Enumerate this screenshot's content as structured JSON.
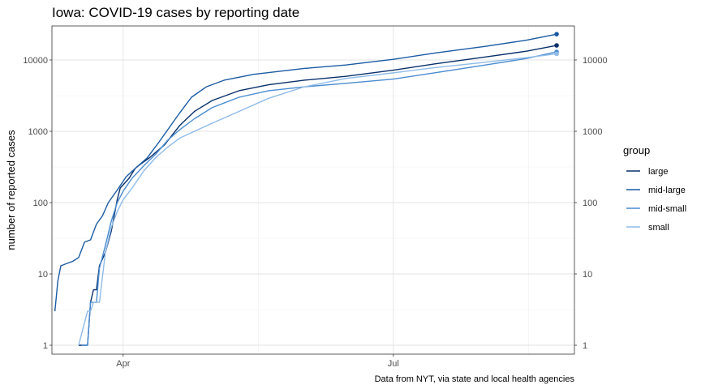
{
  "chart_data": {
    "type": "line",
    "title": "Iowa: COVID-19 cases by reporting date",
    "xlabel": "",
    "ylabel": "number of reported cases",
    "caption": "Data from NYT, via state and local health agencies",
    "y_scale": "log10",
    "ylim": [
      0.75,
      30000
    ],
    "xlim": [
      "2020-03-08",
      "2020-08-31"
    ],
    "y_ticks": [
      1,
      10,
      100,
      1000,
      10000
    ],
    "y_tick_labels": [
      "1",
      "10",
      "100",
      "1000",
      "10000"
    ],
    "x_ticks": [
      "2020-04-01",
      "2020-07-01"
    ],
    "x_tick_labels": [
      "Apr",
      "Jul"
    ],
    "secondary_y_axis": true,
    "grid": true,
    "legend": {
      "title": "group",
      "position": "right"
    },
    "end_points": true,
    "series": [
      {
        "name": "large",
        "color": "#08306b",
        "points": [
          [
            "2020-03-17",
            1
          ],
          [
            "2020-03-20",
            1
          ],
          [
            "2020-03-21",
            4
          ],
          [
            "2020-03-22",
            6
          ],
          [
            "2020-03-23",
            6
          ],
          [
            "2020-03-24",
            13
          ],
          [
            "2020-03-26",
            20
          ],
          [
            "2020-03-28",
            40
          ],
          [
            "2020-03-30",
            110
          ],
          [
            "2020-03-31",
            160
          ],
          [
            "2020-04-03",
            220
          ],
          [
            "2020-04-05",
            300
          ],
          [
            "2020-04-07",
            350
          ],
          [
            "2020-04-10",
            430
          ],
          [
            "2020-04-15",
            650
          ],
          [
            "2020-04-20",
            1200
          ],
          [
            "2020-04-25",
            1900
          ],
          [
            "2020-05-01",
            2700
          ],
          [
            "2020-05-10",
            3700
          ],
          [
            "2020-05-20",
            4500
          ],
          [
            "2020-06-01",
            5200
          ],
          [
            "2020-06-15",
            5900
          ],
          [
            "2020-07-01",
            7200
          ],
          [
            "2020-07-15",
            8800
          ],
          [
            "2020-08-01",
            11000
          ],
          [
            "2020-08-15",
            13300
          ],
          [
            "2020-08-25",
            16000
          ]
        ]
      },
      {
        "name": "mid-large",
        "color": "#1a5ba3",
        "points": [
          [
            "2020-03-09",
            3
          ],
          [
            "2020-03-10",
            8
          ],
          [
            "2020-03-11",
            13
          ],
          [
            "2020-03-13",
            14
          ],
          [
            "2020-03-15",
            15
          ],
          [
            "2020-03-17",
            17
          ],
          [
            "2020-03-19",
            28
          ],
          [
            "2020-03-21",
            30
          ],
          [
            "2020-03-23",
            50
          ],
          [
            "2020-03-25",
            65
          ],
          [
            "2020-03-27",
            100
          ],
          [
            "2020-03-30",
            150
          ],
          [
            "2020-04-02",
            230
          ],
          [
            "2020-04-05",
            300
          ],
          [
            "2020-04-09",
            420
          ],
          [
            "2020-04-13",
            700
          ],
          [
            "2020-04-16",
            1050
          ],
          [
            "2020-04-20",
            1800
          ],
          [
            "2020-04-24",
            3000
          ],
          [
            "2020-04-29",
            4200
          ],
          [
            "2020-05-05",
            5200
          ],
          [
            "2020-05-15",
            6300
          ],
          [
            "2020-06-01",
            7600
          ],
          [
            "2020-06-15",
            8500
          ],
          [
            "2020-07-01",
            10200
          ],
          [
            "2020-07-15",
            12500
          ],
          [
            "2020-08-01",
            15500
          ],
          [
            "2020-08-15",
            19000
          ],
          [
            "2020-08-25",
            23000
          ]
        ]
      },
      {
        "name": "mid-small",
        "color": "#4a8cd0",
        "points": [
          [
            "2020-03-18",
            1
          ],
          [
            "2020-03-20",
            1
          ],
          [
            "2020-03-21",
            4
          ],
          [
            "2020-03-23",
            4
          ],
          [
            "2020-03-24",
            12
          ],
          [
            "2020-03-26",
            25
          ],
          [
            "2020-03-28",
            55
          ],
          [
            "2020-03-30",
            100
          ],
          [
            "2020-04-01",
            145
          ],
          [
            "2020-04-04",
            220
          ],
          [
            "2020-04-08",
            330
          ],
          [
            "2020-04-12",
            480
          ],
          [
            "2020-04-16",
            750
          ],
          [
            "2020-04-20",
            1050
          ],
          [
            "2020-04-25",
            1500
          ],
          [
            "2020-05-01",
            2150
          ],
          [
            "2020-05-10",
            3000
          ],
          [
            "2020-05-20",
            3700
          ],
          [
            "2020-06-01",
            4200
          ],
          [
            "2020-06-15",
            4700
          ],
          [
            "2020-07-01",
            5400
          ],
          [
            "2020-07-15",
            6600
          ],
          [
            "2020-08-01",
            8500
          ],
          [
            "2020-08-15",
            10500
          ],
          [
            "2020-08-25",
            13000
          ]
        ]
      },
      {
        "name": "small",
        "color": "#8fbbe8",
        "points": [
          [
            "2020-03-17",
            1
          ],
          [
            "2020-03-20",
            3
          ],
          [
            "2020-03-21",
            3
          ],
          [
            "2020-03-22",
            4
          ],
          [
            "2020-03-24",
            4
          ],
          [
            "2020-03-26",
            20
          ],
          [
            "2020-03-28",
            45
          ],
          [
            "2020-03-30",
            75
          ],
          [
            "2020-04-01",
            110
          ],
          [
            "2020-04-04",
            160
          ],
          [
            "2020-04-08",
            280
          ],
          [
            "2020-04-12",
            430
          ],
          [
            "2020-04-16",
            600
          ],
          [
            "2020-04-20",
            800
          ],
          [
            "2020-04-25",
            1000
          ],
          [
            "2020-05-01",
            1300
          ],
          [
            "2020-05-10",
            1900
          ],
          [
            "2020-05-20",
            2900
          ],
          [
            "2020-06-01",
            4200
          ],
          [
            "2020-06-15",
            5500
          ],
          [
            "2020-07-01",
            6600
          ],
          [
            "2020-07-15",
            7800
          ],
          [
            "2020-08-01",
            9300
          ],
          [
            "2020-08-15",
            10800
          ],
          [
            "2020-08-25",
            12200
          ]
        ]
      }
    ]
  }
}
